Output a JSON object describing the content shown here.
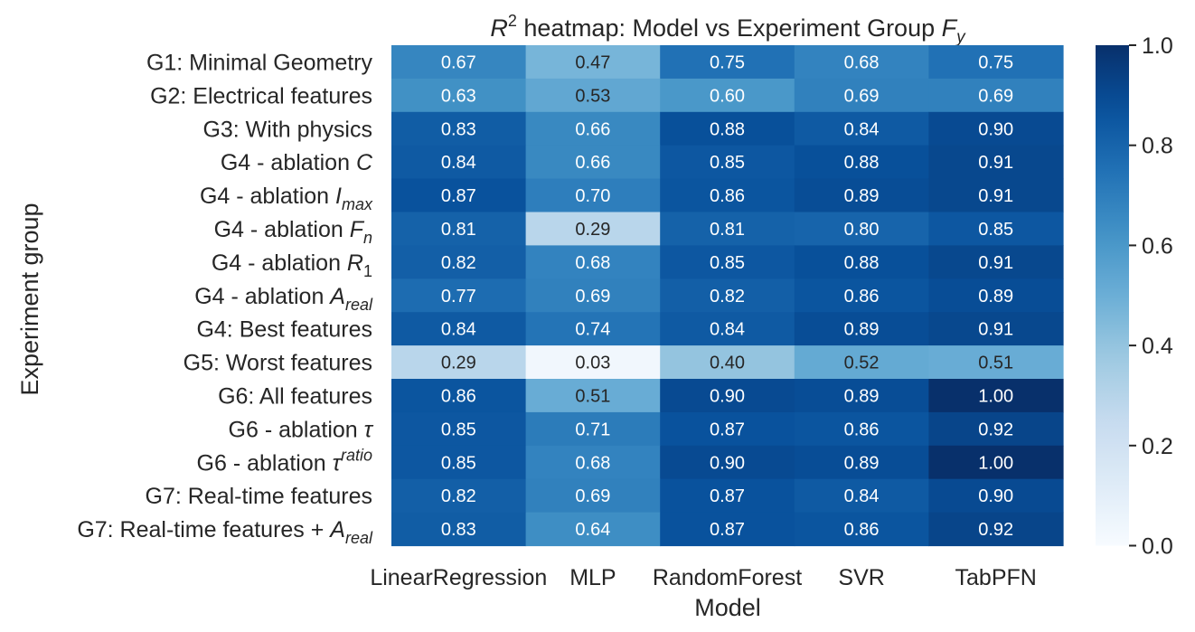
{
  "chart_data": {
    "type": "heatmap",
    "title_parts": [
      "R",
      "2",
      " heatmap: Model vs Experiment Group ",
      "F",
      "y"
    ],
    "xlabel": "Model",
    "ylabel": "Experiment group",
    "columns": [
      "LinearRegression",
      "MLP",
      "RandomForest",
      "SVR",
      "TabPFN"
    ],
    "rows": [
      {
        "label": [
          {
            "t": "G1: Minimal Geometry"
          }
        ]
      },
      {
        "label": [
          {
            "t": "G2: Electrical features"
          }
        ]
      },
      {
        "label": [
          {
            "t": "G3: With physics"
          }
        ]
      },
      {
        "label": [
          {
            "t": "G4 - ablation "
          },
          {
            "t": "C",
            "i": true
          }
        ]
      },
      {
        "label": [
          {
            "t": "G4 - ablation "
          },
          {
            "t": "I",
            "i": true
          },
          {
            "t": "max",
            "i": true,
            "sub": true
          }
        ]
      },
      {
        "label": [
          {
            "t": "G4 - ablation "
          },
          {
            "t": "F",
            "i": true
          },
          {
            "t": "n",
            "i": true,
            "sub": true
          }
        ]
      },
      {
        "label": [
          {
            "t": "G4 - ablation "
          },
          {
            "t": "R",
            "i": true
          },
          {
            "t": "1",
            "sub": true
          }
        ]
      },
      {
        "label": [
          {
            "t": "G4 - ablation "
          },
          {
            "t": "A",
            "i": true
          },
          {
            "t": "real",
            "i": true,
            "sub": true
          }
        ]
      },
      {
        "label": [
          {
            "t": "G4: Best features"
          }
        ]
      },
      {
        "label": [
          {
            "t": "G5: Worst features"
          }
        ]
      },
      {
        "label": [
          {
            "t": "G6: All features"
          }
        ]
      },
      {
        "label": [
          {
            "t": "G6 - ablation "
          },
          {
            "t": "τ",
            "i": true
          }
        ]
      },
      {
        "label": [
          {
            "t": "G6 - ablation "
          },
          {
            "t": "τ",
            "i": true
          },
          {
            "t": "ratio",
            "i": true,
            "sup": true
          }
        ]
      },
      {
        "label": [
          {
            "t": "G7: Real-time features"
          }
        ]
      },
      {
        "label": [
          {
            "t": "G7: Real-time features + "
          },
          {
            "t": "A",
            "i": true
          },
          {
            "t": "real",
            "i": true,
            "sub": true
          }
        ]
      }
    ],
    "values": [
      [
        0.67,
        0.47,
        0.75,
        0.68,
        0.75
      ],
      [
        0.63,
        0.53,
        0.6,
        0.69,
        0.69
      ],
      [
        0.83,
        0.66,
        0.88,
        0.84,
        0.9
      ],
      [
        0.84,
        0.66,
        0.85,
        0.88,
        0.91
      ],
      [
        0.87,
        0.7,
        0.86,
        0.89,
        0.91
      ],
      [
        0.81,
        0.29,
        0.81,
        0.8,
        0.85
      ],
      [
        0.82,
        0.68,
        0.85,
        0.88,
        0.91
      ],
      [
        0.77,
        0.69,
        0.82,
        0.86,
        0.89
      ],
      [
        0.84,
        0.74,
        0.84,
        0.89,
        0.91
      ],
      [
        0.29,
        0.03,
        0.4,
        0.52,
        0.51
      ],
      [
        0.86,
        0.51,
        0.9,
        0.89,
        1.0
      ],
      [
        0.85,
        0.71,
        0.87,
        0.86,
        0.92
      ],
      [
        0.85,
        0.68,
        0.9,
        0.89,
        1.0
      ],
      [
        0.82,
        0.69,
        0.87,
        0.84,
        0.9
      ],
      [
        0.83,
        0.64,
        0.87,
        0.86,
        0.92
      ]
    ],
    "value_range": [
      0.0,
      1.0
    ],
    "colormap": "Blues",
    "colorbar_ticks": [
      "0.0",
      "0.2",
      "0.4",
      "0.6",
      "0.8",
      "1.0"
    ]
  }
}
